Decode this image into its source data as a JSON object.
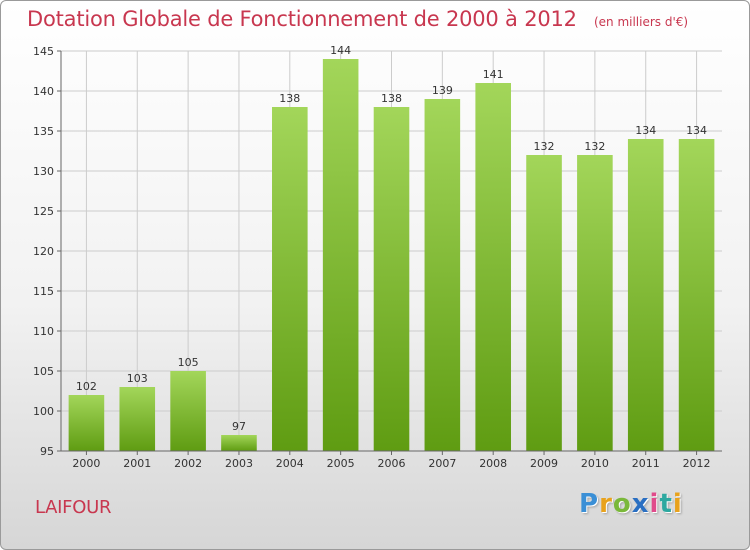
{
  "title": "Dotation Globale de Fonctionnement de 2000 à 2012",
  "subtitle": "(en milliers d'€)",
  "location": "LAIFOUR",
  "logo": {
    "letters": [
      "P",
      "r",
      "o",
      "x",
      "i",
      "t",
      "i"
    ],
    "colors": [
      "#3a8fd6",
      "#e8a21c",
      "#7ab83a",
      "#2a6fc2",
      "#e04a8a",
      "#2ea8a0",
      "#e8a21c"
    ]
  },
  "colors": {
    "accent": "#c8374f",
    "bar_top": "#a3d65a",
    "bar_bottom": "#5f9c12",
    "grid": "#cccccc"
  },
  "chart_data": {
    "type": "bar",
    "categories": [
      "2000",
      "2001",
      "2002",
      "2003",
      "2004",
      "2005",
      "2006",
      "2007",
      "2008",
      "2009",
      "2010",
      "2011",
      "2012"
    ],
    "values": [
      102,
      103,
      105,
      97,
      138,
      144,
      138,
      139,
      141,
      132,
      132,
      134,
      134
    ],
    "value_labels": [
      "102",
      "103",
      "105",
      "97",
      "138",
      "144",
      "138",
      "139",
      "141",
      "132",
      "132",
      "134",
      "134"
    ],
    "ylim": [
      95,
      145
    ],
    "yticks": [
      95,
      100,
      105,
      110,
      115,
      120,
      125,
      130,
      135,
      140,
      145
    ],
    "grid": true,
    "xlabel": "",
    "ylabel": ""
  }
}
